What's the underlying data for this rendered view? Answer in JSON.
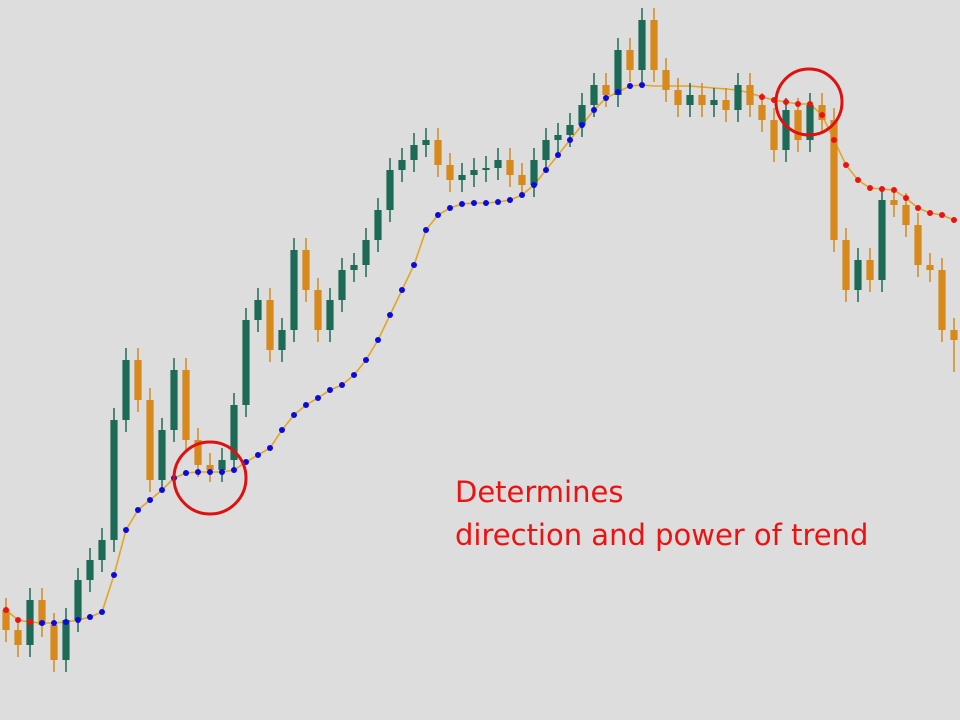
{
  "chart_data": {
    "type": "candlestick",
    "open": [
      110,
      90,
      75,
      120,
      95,
      60,
      100,
      140,
      160,
      180,
      300,
      360,
      320,
      240,
      290,
      350,
      280,
      255,
      250,
      260,
      315,
      400,
      420,
      370,
      390,
      470,
      430,
      390,
      420,
      450,
      455,
      480,
      510,
      550,
      560,
      575,
      580,
      555,
      540,
      545,
      550,
      552,
      560,
      545,
      535,
      560,
      580,
      585,
      595,
      615,
      635,
      625,
      670,
      650,
      700,
      650,
      630,
      615,
      625,
      615,
      620,
      610,
      635,
      615,
      600,
      570,
      610,
      580,
      615,
      600,
      480,
      430,
      460,
      440,
      520,
      515,
      495,
      455,
      450,
      390
    ],
    "high": [
      122,
      102,
      132,
      132,
      107,
      112,
      152,
      172,
      192,
      312,
      372,
      372,
      332,
      302,
      362,
      362,
      292,
      267,
      272,
      327,
      412,
      432,
      432,
      402,
      482,
      482,
      442,
      432,
      462,
      467,
      492,
      522,
      562,
      572,
      587,
      592,
      592,
      567,
      557,
      562,
      564,
      572,
      572,
      557,
      572,
      592,
      597,
      607,
      627,
      647,
      647,
      682,
      682,
      712,
      712,
      662,
      642,
      637,
      637,
      632,
      632,
      647,
      647,
      627,
      612,
      622,
      622,
      627,
      627,
      612,
      492,
      472,
      472,
      532,
      532,
      527,
      507,
      467,
      462,
      402
    ],
    "low": [
      78,
      63,
      63,
      83,
      48,
      48,
      88,
      128,
      148,
      168,
      288,
      308,
      228,
      228,
      278,
      268,
      243,
      238,
      238,
      248,
      303,
      388,
      358,
      358,
      378,
      418,
      378,
      378,
      408,
      438,
      443,
      468,
      498,
      538,
      548,
      563,
      543,
      528,
      528,
      533,
      538,
      540,
      533,
      523,
      523,
      548,
      568,
      573,
      583,
      603,
      613,
      613,
      638,
      638,
      638,
      618,
      603,
      603,
      603,
      603,
      598,
      598,
      603,
      588,
      558,
      558,
      568,
      568,
      588,
      468,
      418,
      418,
      428,
      428,
      503,
      483,
      443,
      438,
      378,
      348
    ],
    "close": [
      90,
      75,
      120,
      95,
      60,
      100,
      140,
      160,
      180,
      300,
      360,
      320,
      240,
      290,
      350,
      280,
      255,
      250,
      260,
      315,
      400,
      420,
      370,
      390,
      470,
      430,
      390,
      420,
      450,
      455,
      480,
      510,
      550,
      560,
      575,
      580,
      555,
      540,
      545,
      550,
      552,
      560,
      545,
      535,
      560,
      580,
      585,
      595,
      615,
      635,
      625,
      670,
      650,
      700,
      650,
      630,
      615,
      625,
      615,
      620,
      610,
      635,
      615,
      600,
      570,
      610,
      580,
      615,
      600,
      480,
      430,
      460,
      440,
      520,
      515,
      495,
      455,
      450,
      390,
      380
    ],
    "up_color": "#1d6a57",
    "down_color": "#d8891c",
    "trend": {
      "color": "#e3a526",
      "values": [
        110,
        100,
        98,
        97,
        97,
        98,
        100,
        103,
        108,
        145,
        190,
        210,
        220,
        230,
        242,
        247,
        248,
        248,
        248,
        250,
        258,
        265,
        272,
        290,
        305,
        315,
        322,
        330,
        335,
        345,
        360,
        380,
        405,
        430,
        455,
        490,
        505,
        512,
        516,
        517,
        517,
        518,
        520,
        525,
        535,
        550,
        565,
        580,
        595,
        610,
        622,
        628,
        634,
        635,
        634,
        634,
        634,
        634,
        633,
        632,
        631,
        630,
        627,
        623,
        620,
        618,
        616,
        616,
        605,
        580,
        555,
        540,
        532,
        531,
        530,
        522,
        512,
        507,
        505,
        500
      ]
    },
    "up_dots": {
      "color": "#0a0ae0",
      "values": [
        null,
        null,
        null,
        97,
        97,
        98,
        100,
        103,
        108,
        145,
        190,
        210,
        220,
        230,
        242,
        247,
        248,
        248,
        248,
        250,
        258,
        265,
        272,
        290,
        305,
        315,
        322,
        330,
        335,
        345,
        360,
        380,
        405,
        430,
        455,
        490,
        505,
        512,
        516,
        517,
        517,
        518,
        520,
        525,
        535,
        550,
        565,
        580,
        595,
        610,
        622,
        628,
        634,
        635,
        null,
        null,
        null,
        null,
        null,
        null,
        null,
        null,
        null,
        null,
        null,
        null,
        null,
        null,
        null,
        null,
        null,
        null,
        null,
        null,
        null,
        null,
        null,
        null,
        null,
        null
      ]
    },
    "down_dots": {
      "color": "#ee1111",
      "values": [
        110,
        100,
        98,
        null,
        null,
        null,
        null,
        null,
        null,
        null,
        null,
        null,
        null,
        null,
        null,
        null,
        null,
        null,
        null,
        null,
        null,
        null,
        null,
        null,
        null,
        null,
        null,
        null,
        null,
        null,
        null,
        null,
        null,
        null,
        null,
        null,
        null,
        null,
        null,
        null,
        null,
        null,
        null,
        null,
        null,
        null,
        null,
        null,
        null,
        null,
        null,
        null,
        null,
        null,
        null,
        null,
        null,
        null,
        null,
        null,
        null,
        null,
        null,
        623,
        620,
        618,
        616,
        616,
        605,
        580,
        555,
        540,
        532,
        531,
        530,
        522,
        512,
        507,
        505,
        500
      ]
    },
    "ylim": [
      0,
      720
    ],
    "annotations": [
      "Determines",
      "direction and power of trend"
    ]
  }
}
